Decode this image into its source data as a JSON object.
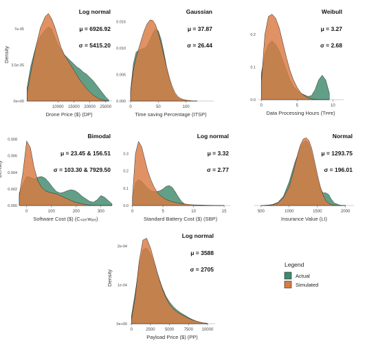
{
  "colors": {
    "actual": "#3f8a6c",
    "simulated": "#d97a42",
    "overlap": "#a8652f"
  },
  "legend": {
    "title": "Legend",
    "items": [
      {
        "label": "Actual",
        "color": "#3f8a6c"
      },
      {
        "label": "Simulated",
        "color": "#d97a42"
      }
    ]
  },
  "chart_data": [
    {
      "type": "area",
      "ylabel": "Density",
      "xlabel": "Drone Price ($) (DP)",
      "distribution": "Log normal",
      "stats": [
        "μ = 6926.92",
        "σ = 5415.20"
      ],
      "xlim": [
        0,
        27000
      ],
      "ylim": [
        0,
        9e-05
      ],
      "xticks": [
        10000,
        15000,
        20000,
        25000
      ],
      "yticks": [
        {
          "v": 0,
          "l": "0e+00"
        },
        {
          "v": 3.5e-05,
          "l": "3.5e-05"
        },
        {
          "v": 7e-05,
          "l": "7e-05"
        }
      ],
      "x": [
        300,
        1500,
        3000,
        4500,
        6000,
        7000,
        8000,
        9000,
        10000,
        11000,
        12000,
        13000,
        14000,
        15000,
        16000,
        17000,
        18000,
        19000,
        20000,
        21000,
        22000,
        23000,
        24000,
        25000,
        26000
      ],
      "series": [
        {
          "name": "Actual",
          "values": [
            1.3e-05,
            3.4e-05,
            5.2e-05,
            6.3e-05,
            6.9e-05,
            7.2e-05,
            7e-05,
            6.2e-05,
            5.5e-05,
            5e-05,
            4.5e-05,
            4.2e-05,
            3.9e-05,
            3.6e-05,
            3.3e-05,
            3.1e-05,
            2.8e-05,
            2.6e-05,
            2.3e-05,
            2e-05,
            1.6e-05,
            1.2e-05,
            8e-06,
            4e-06,
            1e-06
          ]
        },
        {
          "name": "Simulated",
          "values": [
            8e-06,
            2.8e-05,
            5.2e-05,
            7.1e-05,
            8.2e-05,
            8.5e-05,
            8e-05,
            7.2e-05,
            6.2e-05,
            5.2e-05,
            4.5e-05,
            4e-05,
            3.5e-05,
            3e-05,
            2.5e-05,
            2e-05,
            1.6e-05,
            1.2e-05,
            9e-06,
            6e-06,
            4e-06,
            2e-06,
            1e-06,
            5e-07,
            0
          ]
        }
      ]
    },
    {
      "type": "area",
      "ylabel": "",
      "xlabel": "Time saving Percentage (ITSP)",
      "distribution": "Gaussian",
      "stats": [
        "μ = 37.87",
        "σ = 26.44"
      ],
      "xlim": [
        -5,
        150
      ],
      "ylim": [
        0,
        0.0175
      ],
      "xticks": [
        0,
        50,
        100
      ],
      "yticks": [
        {
          "v": 0,
          "l": "0.000"
        },
        {
          "v": 0.005,
          "l": "0.005"
        },
        {
          "v": 0.01,
          "l": "0.010"
        },
        {
          "v": 0.015,
          "l": "0.015"
        }
      ],
      "x": [
        0,
        5,
        10,
        15,
        20,
        25,
        30,
        35,
        40,
        45,
        50,
        55,
        60,
        65,
        70,
        75,
        80,
        85,
        90,
        95,
        100,
        105,
        110,
        115,
        120
      ],
      "series": [
        {
          "name": "Actual",
          "values": [
            0.002,
            0.007,
            0.0092,
            0.0096,
            0.0098,
            0.01,
            0.0104,
            0.0116,
            0.0128,
            0.0136,
            0.0132,
            0.0116,
            0.0092,
            0.0064,
            0.004,
            0.0022,
            0.0012,
            0.0006,
            0.0003,
            0.0002,
            0.0001,
            5e-05,
            2e-05,
            1e-05,
            0
          ]
        },
        {
          "name": "Simulated",
          "values": [
            0.0018,
            0.0058,
            0.0082,
            0.01,
            0.0118,
            0.0134,
            0.0146,
            0.0153,
            0.0152,
            0.0144,
            0.0128,
            0.0108,
            0.0086,
            0.0064,
            0.0044,
            0.0028,
            0.0016,
            0.0009,
            0.0005,
            0.0003,
            0.0002,
            0.0001,
            5e-05,
            2e-05,
            0
          ]
        }
      ]
    },
    {
      "type": "area",
      "ylabel": "",
      "xlabel": "Data Processing Hours (Tᴘᴘᴇ)",
      "distribution": "Weibull",
      "stats": [
        "μ = 3.27",
        "σ = 2.68"
      ],
      "xlim": [
        -0.5,
        11.5
      ],
      "ylim": [
        0,
        0.28
      ],
      "xticks": [
        0,
        5,
        10
      ],
      "yticks": [
        {
          "v": 0,
          "l": "0.0"
        },
        {
          "v": 0.1,
          "l": "0.1"
        },
        {
          "v": 0.2,
          "l": "0.2"
        }
      ],
      "x": [
        0,
        0.5,
        1,
        1.5,
        2,
        2.5,
        3,
        3.5,
        4,
        4.5,
        5,
        5.5,
        6,
        6.5,
        7,
        7.5,
        8,
        8.5,
        9,
        9.5
      ],
      "series": [
        {
          "name": "Actual",
          "values": [
            0.08,
            0.14,
            0.17,
            0.18,
            0.17,
            0.15,
            0.12,
            0.09,
            0.06,
            0.04,
            0.03,
            0.02,
            0.015,
            0.01,
            0.012,
            0.03,
            0.06,
            0.075,
            0.06,
            0.02
          ]
        },
        {
          "name": "Simulated",
          "values": [
            0.05,
            0.2,
            0.255,
            0.262,
            0.25,
            0.22,
            0.175,
            0.13,
            0.09,
            0.06,
            0.038,
            0.022,
            0.012,
            0.006,
            0.003,
            0.001,
            0.0005,
            0,
            0,
            0
          ]
        }
      ]
    },
    {
      "type": "area",
      "ylabel": "Density",
      "xlabel": "Software Cost ($) (Cₛₒₑₜᴡₐᵣₑ)",
      "distribution": "Bimodal",
      "stats": [
        "μ = 23.45 & 156.51",
        "σ = 103.30 & 7929.50"
      ],
      "xlim": [
        -30,
        345
      ],
      "ylim": [
        0,
        0.0088
      ],
      "xticks": [
        0,
        100,
        200,
        300
      ],
      "yticks": [
        {
          "v": 0,
          "l": "0.000"
        },
        {
          "v": 0.002,
          "l": "0.002"
        },
        {
          "v": 0.004,
          "l": "0.004"
        },
        {
          "v": 0.006,
          "l": "0.006"
        },
        {
          "v": 0.008,
          "l": "0.008"
        }
      ],
      "x": [
        -30,
        -15,
        0,
        15,
        30,
        45,
        60,
        75,
        90,
        105,
        120,
        135,
        150,
        165,
        180,
        195,
        210,
        225,
        240,
        255,
        270,
        285,
        300,
        315,
        330,
        345
      ],
      "series": [
        {
          "name": "Actual",
          "values": [
            0.0015,
            0.0026,
            0.0035,
            0.0034,
            0.0032,
            0.0034,
            0.0035,
            0.0033,
            0.0028,
            0.0022,
            0.0017,
            0.0015,
            0.0016,
            0.0018,
            0.0019,
            0.0018,
            0.0015,
            0.0011,
            0.0008,
            0.0005,
            0.0004,
            0.0007,
            0.0012,
            0.001,
            0.0006,
            0.0002
          ]
        },
        {
          "name": "Simulated",
          "values": [
            0.0012,
            0.004,
            0.0078,
            0.007,
            0.0046,
            0.003,
            0.0022,
            0.0018,
            0.0016,
            0.0015,
            0.0014,
            0.0012,
            0.001,
            0.0008,
            0.0006,
            0.0004,
            0.0003,
            0.0002,
            0.0001,
            5e-05,
            3e-05,
            2e-05,
            1e-05,
            0,
            0,
            0
          ]
        }
      ]
    },
    {
      "type": "area",
      "ylabel": "",
      "xlabel": "Standard Battery Cost ($) (SBP)",
      "distribution": "Log normal",
      "stats": [
        "μ = 3.32",
        "σ = 2.77"
      ],
      "xlim": [
        -0.3,
        16
      ],
      "ylim": [
        0,
        0.42
      ],
      "xticks": [
        0,
        5,
        10,
        15
      ],
      "yticks": [
        {
          "v": 0,
          "l": "0.0"
        },
        {
          "v": 0.1,
          "l": "0.1"
        },
        {
          "v": 0.2,
          "l": "0.2"
        },
        {
          "v": 0.3,
          "l": "0.3"
        }
      ],
      "x": [
        0,
        0.5,
        1,
        1.5,
        2,
        2.5,
        3,
        3.5,
        4,
        4.5,
        5,
        5.5,
        6,
        6.5,
        7,
        7.5,
        8,
        8.5,
        9,
        9.5,
        10,
        11,
        12,
        13,
        14,
        15
      ],
      "series": [
        {
          "name": "Actual",
          "values": [
            0.04,
            0.13,
            0.15,
            0.14,
            0.12,
            0.1,
            0.085,
            0.08,
            0.08,
            0.085,
            0.095,
            0.11,
            0.115,
            0.105,
            0.08,
            0.05,
            0.025,
            0.01,
            0.004,
            0.001,
            0,
            0,
            0,
            0,
            0,
            0
          ]
        },
        {
          "name": "Simulated",
          "values": [
            0.05,
            0.3,
            0.37,
            0.34,
            0.27,
            0.2,
            0.15,
            0.11,
            0.08,
            0.06,
            0.045,
            0.035,
            0.028,
            0.022,
            0.018,
            0.014,
            0.011,
            0.009,
            0.007,
            0.005,
            0.004,
            0.003,
            0.002,
            0.001,
            0.0005,
            0
          ]
        }
      ]
    },
    {
      "type": "area",
      "ylabel": "",
      "xlabel": "Insurance Value (LI)",
      "distribution": "Normal",
      "stats": [
        "μ = 1293.75",
        "σ = 196.01"
      ],
      "xlim": [
        380,
        2150
      ],
      "ylim": [
        0,
        0.0023
      ],
      "xticks": [
        500,
        1000,
        1500,
        2000
      ],
      "yticks": [],
      "x": [
        500,
        600,
        700,
        800,
        900,
        1000,
        1050,
        1100,
        1150,
        1200,
        1250,
        1300,
        1350,
        1400,
        1450,
        1500,
        1550,
        1600,
        1650,
        1700,
        1750,
        1800,
        1900,
        2000
      ],
      "series": [
        {
          "name": "Actual",
          "values": [
            0,
            1e-05,
            3e-05,
            0.0001,
            0.0003,
            0.00075,
            0.00105,
            0.00135,
            0.0016,
            0.00185,
            0.002,
            0.00205,
            0.00195,
            0.00165,
            0.00125,
            0.00085,
            0.00055,
            0.0004,
            0.0004,
            0.00035,
            0.0002,
            8e-05,
            1e-05,
            0
          ]
        },
        {
          "name": "Simulated",
          "values": [
            0,
            1e-05,
            2e-05,
            8e-05,
            0.00025,
            0.0006,
            0.0009,
            0.00125,
            0.00162,
            0.00192,
            0.0021,
            0.00214,
            0.00205,
            0.0018,
            0.0014,
            0.00098,
            0.00062,
            0.00034,
            0.00016,
            7e-05,
            3e-05,
            1e-05,
            0,
            0
          ]
        }
      ]
    },
    {
      "type": "area",
      "ylabel": "Density",
      "xlabel": "Payload Price ($) (PP)",
      "distribution": "Log normal",
      "stats": [
        "μ = 3588",
        "σ = 2705"
      ],
      "xlim": [
        -300,
        11000
      ],
      "ylim": [
        0,
        0.000235
      ],
      "xticks": [
        0,
        2500,
        5000,
        7500,
        10000
      ],
      "yticks": [
        {
          "v": 0,
          "l": "0e+00"
        },
        {
          "v": 0.0001,
          "l": "1e-04"
        },
        {
          "v": 0.0002,
          "l": "2e-04"
        }
      ],
      "x": [
        0,
        500,
        1000,
        1500,
        2000,
        2500,
        3000,
        3500,
        4000,
        4500,
        5000,
        5500,
        6000,
        6500,
        7000,
        7500,
        8000,
        8500,
        9000,
        9500,
        10000
      ],
      "series": [
        {
          "name": "Actual",
          "values": [
            2e-05,
            8e-05,
            0.00015,
            0.00019,
            0.000195,
            0.00018,
            0.000155,
            0.000125,
            9.5e-05,
            7.2e-05,
            5.6e-05,
            4.4e-05,
            3.5e-05,
            2.8e-05,
            2.2e-05,
            1.6e-05,
            1.1e-05,
            7e-06,
            4e-06,
            2e-06,
            1e-06
          ]
        },
        {
          "name": "Simulated",
          "values": [
            1e-05,
            7e-05,
            0.00016,
            0.000215,
            0.00022,
            0.000195,
            0.00016,
            0.000125,
            9.3e-05,
            6.8e-05,
            5e-05,
            3.8e-05,
            3e-05,
            2.4e-05,
            1.9e-05,
            1.4e-05,
            1e-05,
            7e-06,
            4e-06,
            2e-06,
            1e-06
          ]
        }
      ]
    }
  ]
}
